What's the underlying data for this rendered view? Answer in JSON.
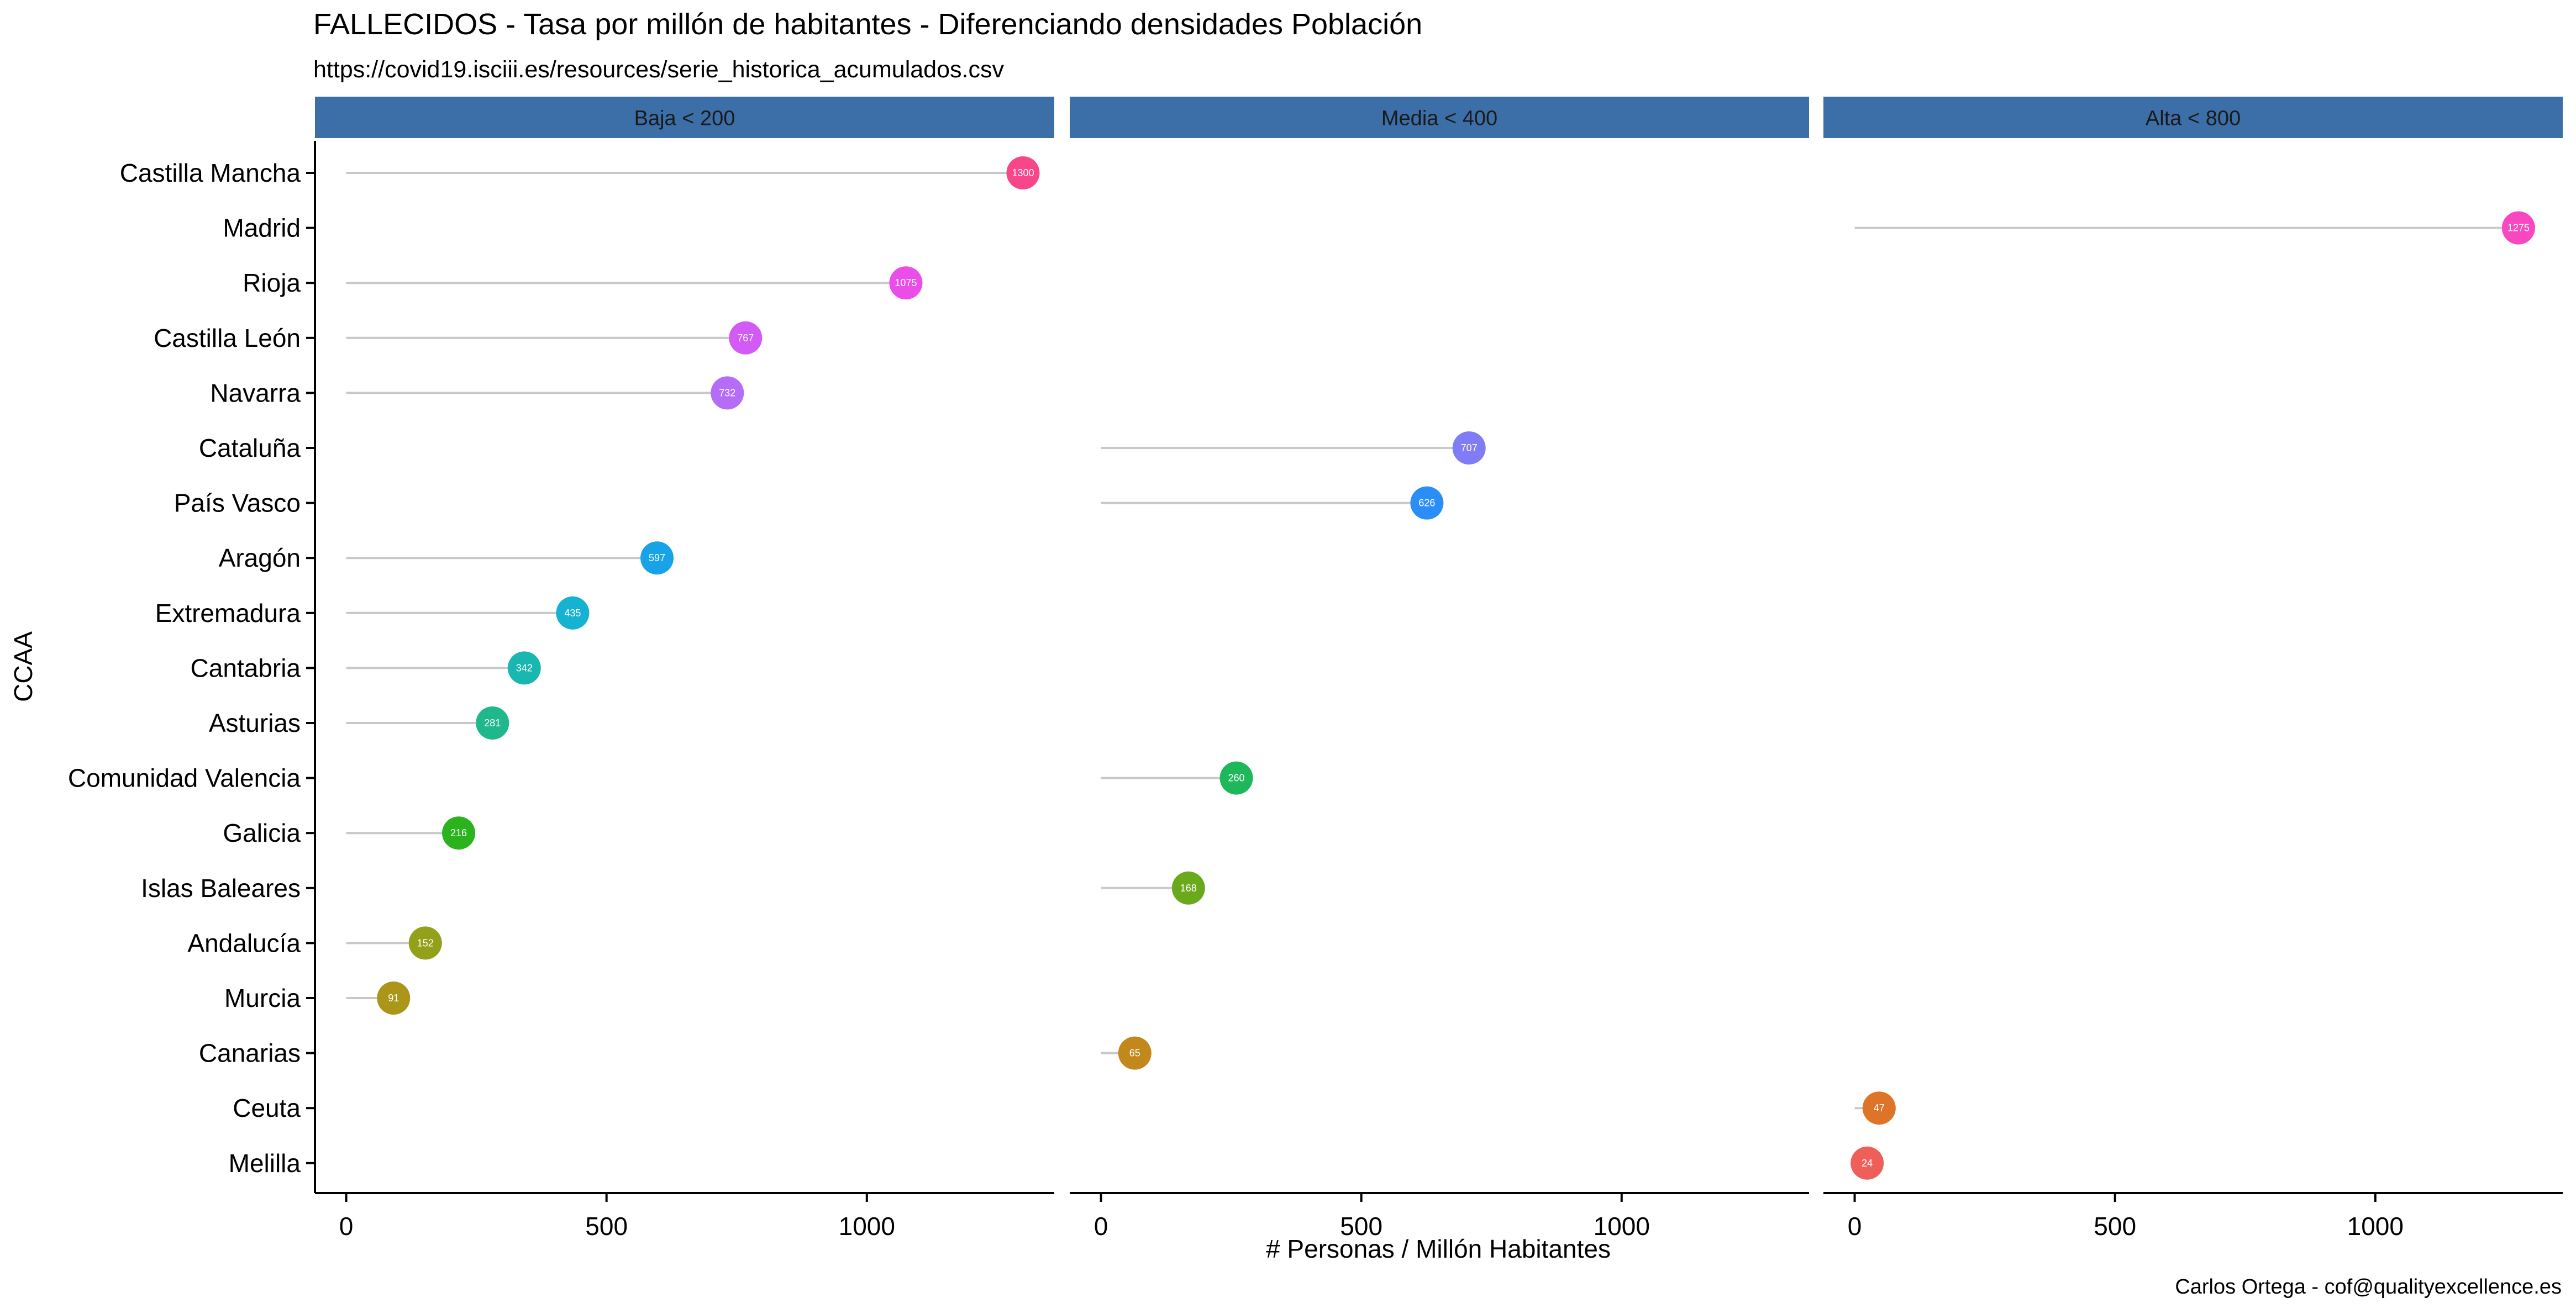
{
  "chart_data": {
    "type": "lollipop",
    "title": "FALLECIDOS - Tasa por millón de habitantes - Diferenciando densidades Población",
    "subtitle": "https://covid19.isciii.es/resources/serie_historica_acumulados.csv",
    "xlabel": "# Personas / Millón Habitantes",
    "ylabel": "CCAA",
    "caption": "Carlos Ortega - cof@qualityexcellence.es",
    "xlim": [
      -60,
      1360
    ],
    "x_ticks": [
      0,
      500,
      1000
    ],
    "grid": false,
    "legend": "none",
    "categories": [
      "Castilla Mancha",
      "Madrid",
      "Rioja",
      "Castilla León",
      "Navarra",
      "Cataluña",
      "País Vasco",
      "Aragón",
      "Extremadura",
      "Cantabria",
      "Asturias",
      "Comunidad Valencia",
      "Galicia",
      "Islas Baleares",
      "Andalucía",
      "Murcia",
      "Canarias",
      "Ceuta",
      "Melilla"
    ],
    "facets": [
      "Baja < 200",
      "Media < 400",
      "Alta < 800"
    ],
    "points": [
      {
        "region": "Castilla Mancha",
        "facet": 0,
        "value": 1300,
        "label": "1300",
        "color": "#F8468A"
      },
      {
        "region": "Madrid",
        "facet": 2,
        "value": 1275,
        "label": "1275",
        "color": "#F847C0"
      },
      {
        "region": "Rioja",
        "facet": 0,
        "value": 1075,
        "label": "1075",
        "color": "#EA4DE8"
      },
      {
        "region": "Castilla León",
        "facet": 0,
        "value": 767,
        "label": "767",
        "color": "#D35AF5"
      },
      {
        "region": "Navarra",
        "facet": 0,
        "value": 732,
        "label": "732",
        "color": "#B56CF7"
      },
      {
        "region": "Cataluña",
        "facet": 1,
        "value": 707,
        "label": "707",
        "color": "#7F7CF5"
      },
      {
        "region": "País Vasco",
        "facet": 1,
        "value": 626,
        "label": "626",
        "color": "#2B8EF7"
      },
      {
        "region": "Aragón",
        "facet": 0,
        "value": 597,
        "label": "597",
        "color": "#18A2E8"
      },
      {
        "region": "Extremadura",
        "facet": 0,
        "value": 435,
        "label": "435",
        "color": "#16B2D1"
      },
      {
        "region": "Cantabria",
        "facet": 0,
        "value": 342,
        "label": "342",
        "color": "#19B7B0"
      },
      {
        "region": "Asturias",
        "facet": 0,
        "value": 281,
        "label": "281",
        "color": "#1FB88C"
      },
      {
        "region": "Comunidad Valencia",
        "facet": 1,
        "value": 260,
        "label": "260",
        "color": "#1DB85A"
      },
      {
        "region": "Galicia",
        "facet": 0,
        "value": 216,
        "label": "216",
        "color": "#2BB31E"
      },
      {
        "region": "Islas Baleares",
        "facet": 1,
        "value": 168,
        "label": "168",
        "color": "#6BA91C"
      },
      {
        "region": "Andalucía",
        "facet": 0,
        "value": 152,
        "label": "152",
        "color": "#92A01A"
      },
      {
        "region": "Murcia",
        "facet": 0,
        "value": 91,
        "label": "91",
        "color": "#AB961A"
      },
      {
        "region": "Canarias",
        "facet": 1,
        "value": 65,
        "label": "65",
        "color": "#C2881C"
      },
      {
        "region": "Ceuta",
        "facet": 2,
        "value": 47,
        "label": "47",
        "color": "#DE7428"
      },
      {
        "region": "Melilla",
        "facet": 2,
        "value": 24,
        "label": "24",
        "color": "#EF5F5A"
      }
    ],
    "colors": {
      "strip_background": "#3C6FA8",
      "segment": "#C8C8C8",
      "axis": "#000000"
    }
  }
}
